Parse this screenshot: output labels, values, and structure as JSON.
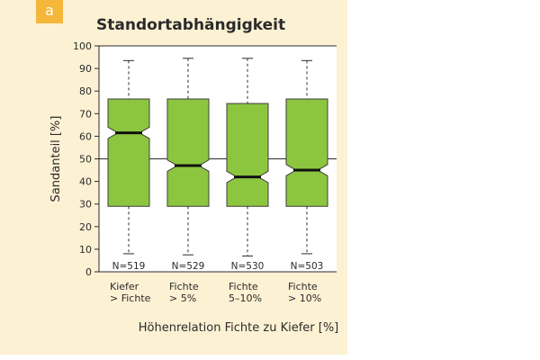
{
  "panel": {
    "badge": "a"
  },
  "colors": {
    "panel_bg": "#fdf1d4",
    "badge_bg": "#f4b73a",
    "box_fill": "#8cc63f",
    "box_stroke": "#3d3d3d",
    "median": "#111111"
  },
  "chart_data": {
    "type": "boxplot",
    "title": "Standortabhängigkeit",
    "ylabel": "Sandanteil [%]",
    "xlabel": "Höhenrelation Fichte zu Kiefer [%]",
    "ylim": [
      0,
      100
    ],
    "yticks": [
      0,
      10,
      20,
      30,
      40,
      50,
      60,
      70,
      80,
      90,
      100
    ],
    "reference_line": 50,
    "grid": false,
    "notched": true,
    "categories": [
      [
        "Kiefer",
        "> Fichte"
      ],
      [
        "Fichte",
        "> 5%"
      ],
      [
        "Fichte",
        "5–10%"
      ],
      [
        "Fichte",
        "> 10%"
      ]
    ],
    "n_labels": [
      "N=519",
      "N=529",
      "N=530",
      "N=503"
    ],
    "boxes": [
      {
        "whisker_low": 8,
        "q1": 29,
        "median": 61.5,
        "q3": 76.5,
        "whisker_high": 93.5,
        "notch_low": 59,
        "notch_high": 64
      },
      {
        "whisker_low": 7.5,
        "q1": 29,
        "median": 47,
        "q3": 76.5,
        "whisker_high": 94.5,
        "notch_low": 44.5,
        "notch_high": 49.5
      },
      {
        "whisker_low": 7,
        "q1": 29,
        "median": 42,
        "q3": 74.5,
        "whisker_high": 94.5,
        "notch_low": 39.5,
        "notch_high": 44.5
      },
      {
        "whisker_low": 8,
        "q1": 29,
        "median": 45,
        "q3": 76.5,
        "whisker_high": 93.5,
        "notch_low": 42.5,
        "notch_high": 47.5
      }
    ]
  }
}
